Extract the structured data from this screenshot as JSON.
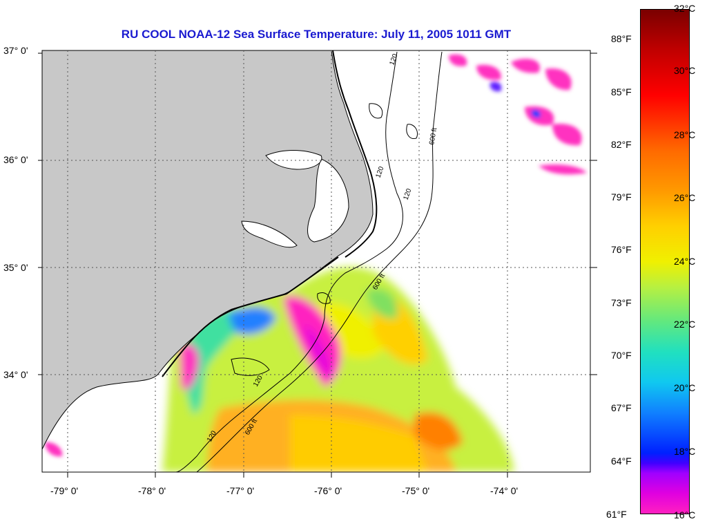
{
  "map": {
    "title": "RU COOL  NOAA-12  Sea Surface Temperature:  July 11, 2005 1011 GMT",
    "lat_labels": [
      "37° 0'",
      "36° 0'",
      "35° 0'",
      "34° 0'"
    ],
    "lon_labels": [
      "-79° 0'",
      "-78° 0'",
      "-77° 0'",
      "-76° 0'",
      "-75° 0'",
      "-74° 0'"
    ],
    "contour_labels": [
      "120",
      "120",
      "600 ft",
      "120",
      "600 ft",
      "120",
      "120",
      "600 ft"
    ],
    "colors": {
      "land": "#c8c8c8",
      "title": "#1a1ad0"
    }
  },
  "colorbar": {
    "fahrenheit": [
      "88°F",
      "85°F",
      "82°F",
      "79°F",
      "76°F",
      "73°F",
      "70°F",
      "67°F",
      "64°F",
      "61°F"
    ],
    "celsius": [
      "32°C",
      "30°C",
      "28°C",
      "26°C",
      "24°C",
      "22°C",
      "20°C",
      "18°C",
      "16°C"
    ]
  }
}
